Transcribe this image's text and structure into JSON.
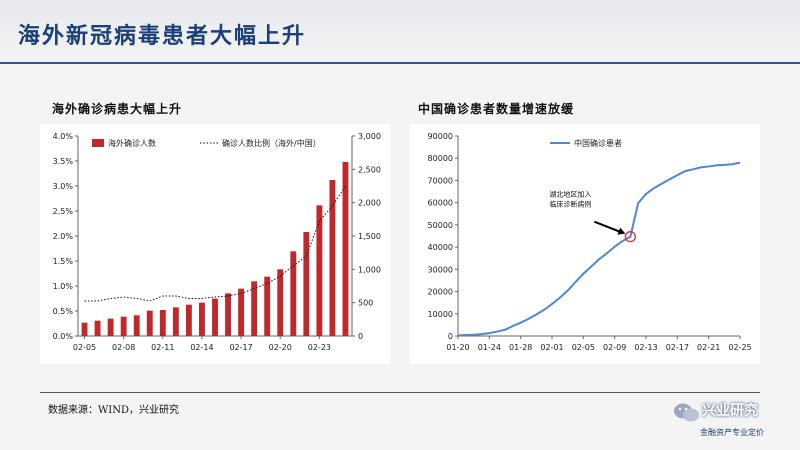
{
  "page": {
    "title": "海外新冠病毒患者大幅上升",
    "source": "数据来源：WIND，兴业研究",
    "watermark_name": "兴业研究",
    "watermark_tagline": "金融资产专业定价"
  },
  "colors": {
    "title": "#1a3f7a",
    "bar": "#c0282c",
    "line_blue": "#4f86d6",
    "marker": "#e03030"
  },
  "chart_data": [
    {
      "type": "bar",
      "subtitle": "海外确诊病患大幅上升",
      "categories": [
        "02-05",
        "02-06",
        "02-07",
        "02-08",
        "02-09",
        "02-10",
        "02-11",
        "02-12",
        "02-13",
        "02-14",
        "02-15",
        "02-16",
        "02-17",
        "02-18",
        "02-19",
        "02-20",
        "02-21",
        "02-22",
        "02-23",
        "02-24",
        "02-25"
      ],
      "tick_labels": [
        "02-05",
        "02-08",
        "02-11",
        "02-14",
        "02-17",
        "02-20",
        "02-23"
      ],
      "series": [
        {
          "name": "海外确诊人数",
          "axis": "right",
          "values": [
            200,
            230,
            260,
            290,
            310,
            380,
            390,
            430,
            470,
            500,
            560,
            640,
            710,
            820,
            890,
            1000,
            1270,
            1560,
            1960,
            2340,
            2610
          ]
        },
        {
          "name": "确诊人数比例（海外/中国）",
          "type": "line",
          "style": "dotted",
          "axis": "left",
          "values": [
            0.7,
            0.7,
            0.75,
            0.78,
            0.75,
            0.7,
            0.8,
            0.8,
            0.75,
            0.75,
            0.78,
            0.8,
            0.85,
            0.95,
            1.05,
            1.2,
            1.4,
            1.6,
            2.3,
            2.6,
            3.0
          ]
        }
      ],
      "yleft": {
        "min": 0,
        "max": 4.0,
        "ticks": [
          "0.0%",
          "0.5%",
          "1.0%",
          "1.5%",
          "2.0%",
          "2.5%",
          "3.0%",
          "3.5%",
          "4.0%"
        ]
      },
      "yright": {
        "min": 0,
        "max": 3000,
        "ticks": [
          "0",
          "500",
          "1,000",
          "1,500",
          "2,000",
          "2,500",
          "3,000"
        ]
      }
    },
    {
      "type": "line",
      "subtitle": "中国确诊患者数量增速放缓",
      "x": [
        "01-20",
        "01-21",
        "01-22",
        "01-23",
        "01-24",
        "01-25",
        "01-26",
        "01-27",
        "01-28",
        "01-29",
        "01-30",
        "01-31",
        "02-01",
        "02-02",
        "02-03",
        "02-04",
        "02-05",
        "02-06",
        "02-07",
        "02-08",
        "02-09",
        "02-10",
        "02-11",
        "02-12",
        "02-13",
        "02-14",
        "02-15",
        "02-16",
        "02-17",
        "02-18",
        "02-19",
        "02-20",
        "02-21",
        "02-22",
        "02-23",
        "02-24",
        "02-25"
      ],
      "tick_labels": [
        "01-20",
        "01-24",
        "01-28",
        "02-01",
        "02-05",
        "02-09",
        "02-13",
        "02-17",
        "02-21",
        "02-25"
      ],
      "series": [
        {
          "name": "中国确诊患者",
          "values": [
            300,
            440,
            580,
            830,
            1300,
            2000,
            2800,
            4500,
            6000,
            7700,
            9700,
            11800,
            14400,
            17200,
            20400,
            24300,
            28000,
            31200,
            34500,
            37200,
            40200,
            42700,
            44700,
            59800,
            63900,
            66500,
            68500,
            70500,
            72400,
            74200,
            75000,
            75900,
            76300,
            76800,
            77000,
            77300,
            78000
          ]
        }
      ],
      "ylim": [
        0,
        90000
      ],
      "yticks": [
        "0",
        "10000",
        "20000",
        "30000",
        "40000",
        "50000",
        "60000",
        "70000",
        "80000",
        "90000"
      ],
      "annotation": {
        "text_line1": "湖北地区加入",
        "text_line2": "临床诊断病例",
        "at": "02-11",
        "value": 44700
      }
    }
  ]
}
